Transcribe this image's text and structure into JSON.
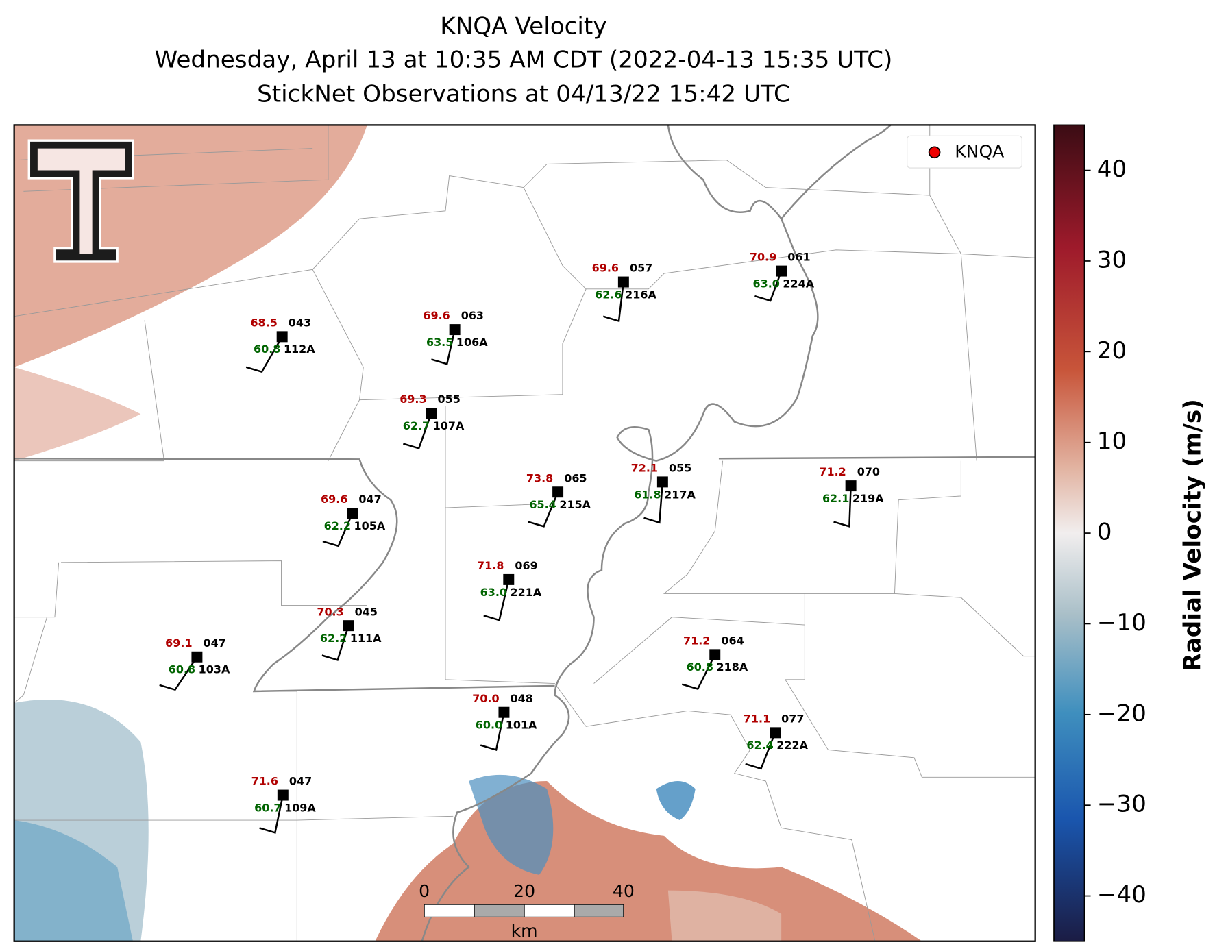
{
  "title": [
    "KNQA Velocity",
    "Wednesday, April 13 at 10:35 AM CDT (2022-04-13 15:35 UTC)",
    "StickNet Observations at 04/13/22 15:42 UTC"
  ],
  "legend": "KNQA",
  "colorbar": {
    "label": "Radial Velocity (m/s)",
    "lim": [
      -45,
      45
    ],
    "ticks": [
      {
        "value": -40,
        "label": "−40"
      },
      {
        "value": -30,
        "label": "−30"
      },
      {
        "value": -20,
        "label": "−20"
      },
      {
        "value": -10,
        "label": "−10"
      },
      0,
      10,
      20,
      30,
      40
    ]
  },
  "scale_bar": {
    "labels": [
      "0",
      "20",
      "40"
    ],
    "unit": "km"
  },
  "stations": [
    {
      "id": "112A",
      "temp": "68.5",
      "dew": "60.8",
      "pres": "043"
    },
    {
      "id": "106A",
      "temp": "69.6",
      "dew": "63.5",
      "pres": "063"
    },
    {
      "id": "216A",
      "temp": "69.6",
      "dew": "62.6",
      "pres": "057"
    },
    {
      "id": "224A",
      "temp": "70.9",
      "dew": "63.0",
      "pres": "061"
    },
    {
      "id": "107A",
      "temp": "69.3",
      "dew": "62.7",
      "pres": "055"
    },
    {
      "id": "215A",
      "temp": "73.8",
      "dew": "65.4",
      "pres": "065"
    },
    {
      "id": "217A",
      "temp": "72.1",
      "dew": "61.8",
      "pres": "055"
    },
    {
      "id": "219A",
      "temp": "71.2",
      "dew": "62.1",
      "pres": "070"
    },
    {
      "id": "105A",
      "temp": "69.6",
      "dew": "62.2",
      "pres": "047"
    },
    {
      "id": "221A",
      "temp": "71.8",
      "dew": "63.0",
      "pres": "069"
    },
    {
      "id": "111A",
      "temp": "70.3",
      "dew": "62.2",
      "pres": "045"
    },
    {
      "id": "103A",
      "temp": "69.1",
      "dew": "60.8",
      "pres": "047"
    },
    {
      "id": "218A",
      "temp": "71.2",
      "dew": "60.8",
      "pres": "064"
    },
    {
      "id": "101A",
      "temp": "70.0",
      "dew": "60.0",
      "pres": "048"
    },
    {
      "id": "222A",
      "temp": "71.1",
      "dew": "62.4",
      "pres": "077"
    },
    {
      "id": "109A",
      "temp": "71.6",
      "dew": "60.7",
      "pres": "047"
    }
  ]
}
